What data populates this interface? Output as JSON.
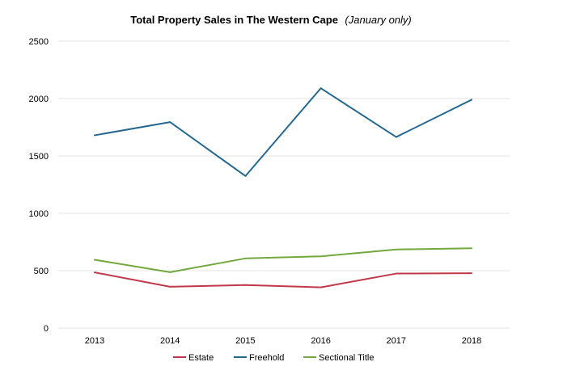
{
  "chart_data": {
    "type": "line",
    "title": "Total Property Sales in The Western Cape",
    "subtitle": "(January only)",
    "xlabel": "",
    "ylabel": "",
    "categories": [
      "2013",
      "2014",
      "2015",
      "2016",
      "2017",
      "2018"
    ],
    "ylim": [
      0,
      2500
    ],
    "yticks": [
      0,
      500,
      1000,
      1500,
      2000,
      2500
    ],
    "grid": true,
    "legend_position": "bottom",
    "series": [
      {
        "name": "Estate",
        "color": "#c0394b",
        "values": [
          485,
          360,
          375,
          355,
          475,
          478
        ]
      },
      {
        "name": "Freehold",
        "color": "#24688f",
        "values": [
          1680,
          1795,
          1325,
          2090,
          1665,
          1990
        ]
      },
      {
        "name": "Sectional Title",
        "color": "#72a83e",
        "values": [
          595,
          487,
          607,
          625,
          685,
          695
        ]
      }
    ]
  }
}
